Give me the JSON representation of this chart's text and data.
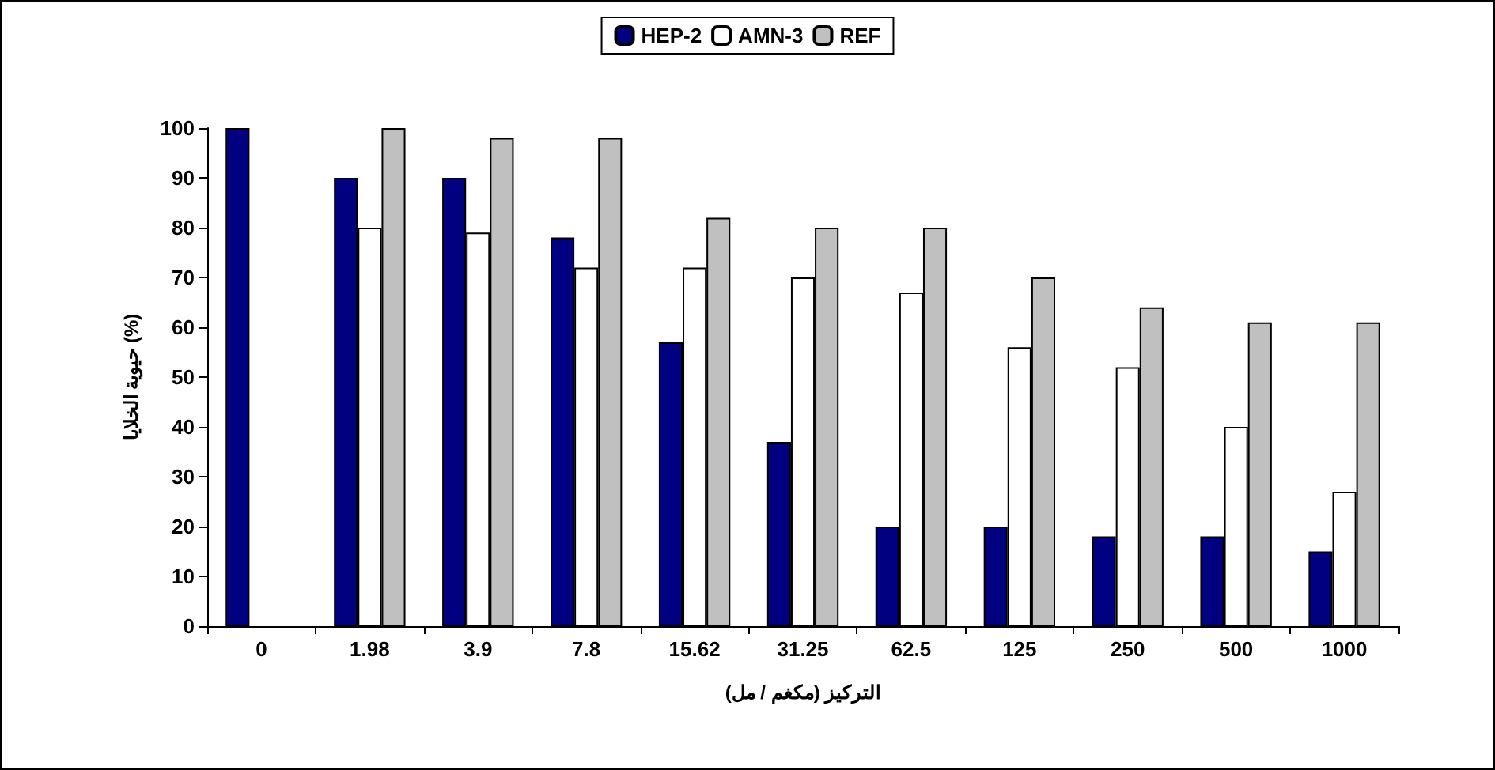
{
  "chart_data": {
    "type": "bar",
    "xlabel": "التركيز (مكغم / مل)",
    "ylabel": "حيوية الخلايا (%)",
    "categories": [
      "0",
      "1.98",
      "3.9",
      "7.8",
      "15.62",
      "31.25",
      "62.5",
      "125",
      "250",
      "500",
      "1000"
    ],
    "series": [
      {
        "name": "HEP-2",
        "color": "#000080",
        "values": [
          100,
          90,
          90,
          78,
          57,
          37,
          20,
          20,
          18,
          18,
          15
        ]
      },
      {
        "name": "AMN-3",
        "color": "#ffffff",
        "values": [
          null,
          80,
          79,
          72,
          72,
          70,
          67,
          56,
          52,
          40,
          27
        ]
      },
      {
        "name": "REF",
        "color": "#c0c0c0",
        "values": [
          null,
          100,
          98,
          98,
          82,
          80,
          80,
          70,
          64,
          61,
          61
        ]
      }
    ],
    "ylim": [
      0,
      100
    ],
    "yticks": [
      0,
      10,
      20,
      30,
      40,
      50,
      60,
      70,
      80,
      90,
      100
    ],
    "grid": false,
    "legend": "top"
  }
}
